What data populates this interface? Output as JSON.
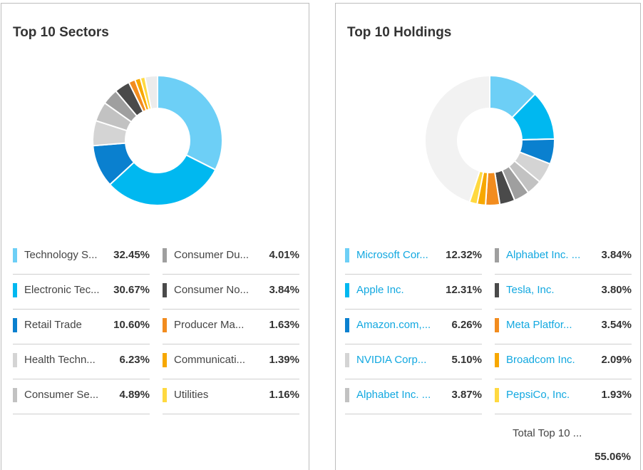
{
  "chart_data": [
    {
      "type": "pie",
      "title": "Top 10 Sectors",
      "categories": [
        "Technology S...",
        "Electronic Tec...",
        "Retail Trade",
        "Health Techn...",
        "Consumer Se...",
        "Consumer Du...",
        "Consumer No...",
        "Producer Ma...",
        "Communicati...",
        "Utilities"
      ],
      "values": [
        32.45,
        30.67,
        10.6,
        6.23,
        4.89,
        4.01,
        3.84,
        1.63,
        1.39,
        1.16
      ],
      "labels": [
        "32.45%",
        "30.67%",
        "10.60%",
        "6.23%",
        "4.89%",
        "4.01%",
        "3.84%",
        "1.63%",
        "1.39%",
        "1.16%"
      ],
      "colors": [
        "#6dcff6",
        "#00b8f0",
        "#0a80cf",
        "#d4d4d4",
        "#c2c2c2",
        "#9f9f9f",
        "#4a4a4a",
        "#f28c1e",
        "#f7a800",
        "#ffd940"
      ],
      "remainder_color": "#ececec"
    },
    {
      "type": "pie",
      "title": "Top 10 Holdings",
      "categories": [
        "Microsoft Cor...",
        "Apple Inc.",
        "Amazon.com,...",
        "NVIDIA Corp...",
        "Alphabet Inc. ...",
        "Alphabet Inc. ...",
        "Tesla, Inc.",
        "Meta Platfor...",
        "Broadcom Inc.",
        "PepsiCo, Inc."
      ],
      "values": [
        12.32,
        12.31,
        6.26,
        5.1,
        3.87,
        3.84,
        3.8,
        3.54,
        2.09,
        1.93
      ],
      "labels": [
        "12.32%",
        "12.31%",
        "6.26%",
        "5.10%",
        "3.87%",
        "3.84%",
        "3.80%",
        "3.54%",
        "2.09%",
        "1.93%"
      ],
      "colors": [
        "#6dcff6",
        "#00b8f0",
        "#0a80cf",
        "#d4d4d4",
        "#c2c2c2",
        "#9f9f9f",
        "#4a4a4a",
        "#f28c1e",
        "#f7a800",
        "#ffd940"
      ],
      "remainder_color": "#f2f2f2",
      "total_label": "Total Top 10 ...",
      "total_value": "55.06%"
    }
  ]
}
